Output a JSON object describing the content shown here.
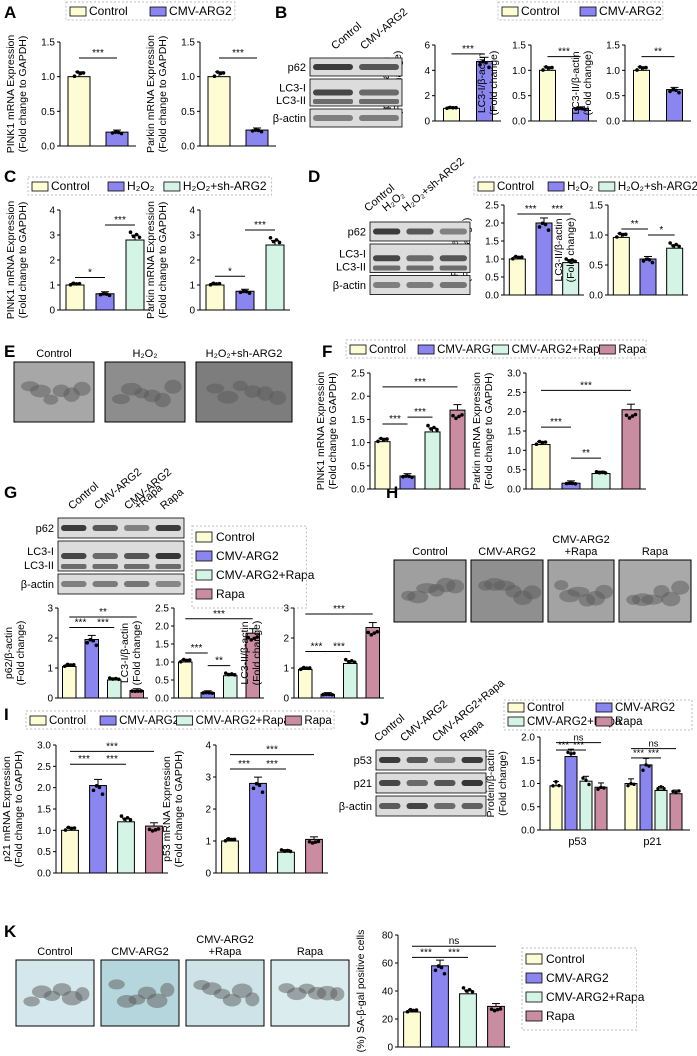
{
  "colors": {
    "control": "#fdfcd2",
    "cmv": "#8a85ef",
    "green": "#d4f4e6",
    "pink": "#c98ca0"
  },
  "panels": {
    "A": {
      "label": "A",
      "legend": [
        "Control",
        "CMV-ARG2"
      ]
    },
    "B": {
      "label": "B",
      "legend": [
        "Control",
        "CMV-ARG2"
      ],
      "lanes": [
        "Control",
        "CMV-ARG2"
      ],
      "bands": [
        "p62",
        "LC3-I",
        "LC3-II",
        "β-actin"
      ]
    },
    "C": {
      "label": "C",
      "legend": [
        "Control",
        "H₂O₂",
        "H₂O₂+sh-ARG2"
      ]
    },
    "D": {
      "label": "D",
      "legend": [
        "Control",
        "H₂O₂",
        "H₂O₂+sh-ARG2"
      ],
      "lanes": [
        "Control",
        "H₂O₂",
        "H₂O₂+sh-ARG2"
      ],
      "bands": [
        "p62",
        "LC3-I",
        "LC3-II",
        "β-actin"
      ]
    },
    "E": {
      "label": "E",
      "titles": [
        "Control",
        "H₂O₂",
        "H₂O₂+sh-ARG2"
      ]
    },
    "F": {
      "label": "F",
      "legend": [
        "Control",
        "CMV-ARG2",
        "CMV-ARG2+Rapa",
        "Rapa"
      ]
    },
    "G": {
      "label": "G",
      "legend": [
        "Control",
        "CMV-ARG2",
        "CMV-ARG2+Rapa",
        "Rapa"
      ],
      "lanes": [
        "Control",
        "CMV-ARG2",
        "CMV-ARG2",
        "+Rapa",
        "Rapa"
      ],
      "bands": [
        "p62",
        "LC3-I",
        "LC3-II",
        "β-actin"
      ]
    },
    "H": {
      "label": "H",
      "titles": [
        "Control",
        "CMV-ARG2",
        "CMV-ARG2",
        "+Rapa",
        "Rapa"
      ]
    },
    "I": {
      "label": "I",
      "legend": [
        "Control",
        "CMV-ARG2",
        "CMV-ARG2+Rapa",
        "Rapa"
      ]
    },
    "J": {
      "label": "J",
      "legend": [
        "Control",
        "CMV-ARG2",
        "CMV-ARG2+Rapa",
        "Rapa"
      ],
      "lanes": [
        "Control",
        "CMV-ARG2",
        "CMV-ARG2+Rapa",
        "Rapa"
      ],
      "bands": [
        "p53",
        "p21",
        "β-actin"
      ]
    },
    "K": {
      "label": "K",
      "titles": [
        "Control",
        "CMV-ARG2",
        "CMV-ARG2",
        "+Rapa",
        "Rapa"
      ],
      "legend": [
        "Control",
        "CMV-ARG2",
        "CMV-ARG2+Rapa",
        "Rapa"
      ]
    }
  },
  "chart_data": [
    {
      "id": "A1",
      "type": "bar",
      "categories": [
        "Control",
        "CMV-ARG2"
      ],
      "values": [
        1.0,
        0.2
      ],
      "ylim": [
        0,
        1.5
      ],
      "yticks": [
        "0.0",
        "0.5",
        "1.0",
        "1.5"
      ],
      "ylabel": [
        "PINK1 mRNA Expression",
        "(Fold change to GAPDH)"
      ],
      "sig": [
        {
          "a": 0,
          "b": 1,
          "text": "***",
          "y": 1.27
        }
      ]
    },
    {
      "id": "A2",
      "type": "bar",
      "categories": [
        "Control",
        "CMV-ARG2"
      ],
      "values": [
        1.0,
        0.23
      ],
      "ylim": [
        0,
        1.5
      ],
      "yticks": [
        "0.0",
        "0.5",
        "1.0",
        "1.5"
      ],
      "ylabel": [
        "Parkin mRNA Expression",
        "(Fold change to GAPDH)"
      ],
      "sig": [
        {
          "a": 0,
          "b": 1,
          "text": "***",
          "y": 1.27
        }
      ]
    },
    {
      "id": "B1",
      "type": "bar",
      "categories": [
        "Control",
        "CMV-ARG2"
      ],
      "values": [
        1.0,
        4.7
      ],
      "ylim": [
        0,
        6
      ],
      "yticks": [
        "0",
        "2",
        "4",
        "6"
      ],
      "ylabel": [
        "p62/β-actin",
        "(Fold change)"
      ],
      "sig": [
        {
          "a": 0,
          "b": 1,
          "text": "***",
          "y": 5.3
        }
      ]
    },
    {
      "id": "B2",
      "type": "bar",
      "categories": [
        "Control",
        "CMV-ARG2"
      ],
      "values": [
        1.0,
        0.25
      ],
      "ylim": [
        0,
        1.5
      ],
      "yticks": [
        "0.0",
        "0.5",
        "1.0",
        "1.5"
      ],
      "ylabel": [
        "LC3-I/β-actin",
        "(Fold change)"
      ],
      "sig": [
        {
          "a": 0,
          "b": 1,
          "text": "***",
          "y": 1.27
        }
      ]
    },
    {
      "id": "B3",
      "type": "bar",
      "categories": [
        "Control",
        "CMV-ARG2"
      ],
      "values": [
        1.0,
        0.62
      ],
      "ylim": [
        0,
        1.5
      ],
      "yticks": [
        "0.0",
        "0.5",
        "1.0",
        "1.5"
      ],
      "ylabel": [
        "LC3-II/β-actin",
        "(Fold change)"
      ],
      "sig": [
        {
          "a": 0,
          "b": 1,
          "text": "**",
          "y": 1.27
        }
      ]
    },
    {
      "id": "C1",
      "type": "bar",
      "categories": [
        "Control",
        "H₂O₂",
        "H₂O₂+sh-ARG2"
      ],
      "values": [
        1.0,
        0.65,
        2.8
      ],
      "ylim": [
        0,
        4
      ],
      "yticks": [
        "0",
        "1",
        "2",
        "3",
        "4"
      ],
      "ylabel": [
        "PINK1 mRNA Expression",
        "(Fold change to GAPDH)"
      ],
      "sig": [
        {
          "a": 0,
          "b": 1,
          "text": "*",
          "y": 1.3
        },
        {
          "a": 1,
          "b": 2,
          "text": "***",
          "y": 3.4
        }
      ]
    },
    {
      "id": "C2",
      "type": "bar",
      "categories": [
        "Control",
        "H₂O₂",
        "H₂O₂+sh-ARG2"
      ],
      "values": [
        1.0,
        0.75,
        2.6
      ],
      "ylim": [
        0,
        4
      ],
      "yticks": [
        "0",
        "1",
        "2",
        "3",
        "4"
      ],
      "ylabel": [
        "Parkin mRNA Expression",
        "(Fold change to GAPDH)"
      ],
      "sig": [
        {
          "a": 0,
          "b": 1,
          "text": "*",
          "y": 1.35
        },
        {
          "a": 1,
          "b": 2,
          "text": "***",
          "y": 3.2
        }
      ]
    },
    {
      "id": "D1",
      "type": "bar",
      "categories": [
        "Control",
        "H₂O₂",
        "H₂O₂+sh-ARG2"
      ],
      "values": [
        1.0,
        2.0,
        0.9
      ],
      "ylim": [
        0,
        2.5
      ],
      "yticks": [
        "0.0",
        "0.5",
        "1.0",
        "1.5",
        "2.0",
        "2.5"
      ],
      "ylabel": [
        "P62/β-actin",
        "(Fold change)"
      ],
      "sig": [
        {
          "a": 0,
          "b": 1,
          "text": "***",
          "y": 2.25
        },
        {
          "a": 1,
          "b": 2,
          "text": "***",
          "y": 2.25
        }
      ]
    },
    {
      "id": "D2",
      "type": "bar",
      "categories": [
        "Control",
        "H₂O₂",
        "H₂O₂+sh-ARG2"
      ],
      "values": [
        0.96,
        0.6,
        0.78
      ],
      "ylim": [
        0,
        1.5
      ],
      "yticks": [
        "0.0",
        "0.5",
        "1.0",
        "1.5"
      ],
      "ylabel": [
        "LC3-II/β-actin",
        "(Fold change)"
      ],
      "sig": [
        {
          "a": 0,
          "b": 1,
          "text": "**",
          "y": 1.1
        },
        {
          "a": 1,
          "b": 2,
          "text": "*",
          "y": 1.0
        }
      ]
    },
    {
      "id": "F1",
      "type": "bar",
      "categories": [
        "Control",
        "CMV-ARG2",
        "CMV-ARG2+Rapa",
        "Rapa"
      ],
      "values": [
        1.02,
        0.28,
        1.23,
        1.7
      ],
      "ylim": [
        0,
        2.5
      ],
      "yticks": [
        "0.0",
        "0.5",
        "1.0",
        "1.5",
        "2.0",
        "2.5"
      ],
      "ylabel": [
        "PINK1 mRNA Expression",
        "(Fold change to GAPDH)"
      ],
      "sig": [
        {
          "a": 0,
          "b": 1,
          "text": "***",
          "y": 1.4
        },
        {
          "a": 1,
          "b": 2,
          "text": "***",
          "y": 1.55
        },
        {
          "a": 0,
          "b": 3,
          "text": "***",
          "y": 2.2
        }
      ]
    },
    {
      "id": "F2",
      "type": "bar",
      "categories": [
        "Control",
        "CMV-ARG2",
        "CMV-ARG2+Rapa",
        "Rapa"
      ],
      "values": [
        1.15,
        0.15,
        0.4,
        2.05
      ],
      "ylim": [
        0,
        3.0
      ],
      "yticks": [
        "0.0",
        "0.5",
        "1.0",
        "1.5",
        "2.0",
        "2.5",
        "3.0"
      ],
      "ylabel": [
        "Parkin mRNA Expression",
        "(Fold change to GAPDH)"
      ],
      "sig": [
        {
          "a": 0,
          "b": 1,
          "text": "***",
          "y": 1.6
        },
        {
          "a": 1,
          "b": 2,
          "text": "**",
          "y": 0.8
        },
        {
          "a": 0,
          "b": 3,
          "text": "***",
          "y": 2.55
        }
      ]
    },
    {
      "id": "G1",
      "type": "bar",
      "categories": [
        "Control",
        "CMV-ARG2",
        "CMV-ARG2+Rapa",
        "Rapa"
      ],
      "values": [
        1.05,
        1.95,
        0.6,
        0.25
      ],
      "ylim": [
        0,
        3
      ],
      "yticks": [
        "0",
        "1",
        "2",
        "3"
      ],
      "ylabel": [
        "p62/β-actin",
        "(Fold change)"
      ],
      "sig": [
        {
          "a": 0,
          "b": 1,
          "text": "***",
          "y": 2.35
        },
        {
          "a": 1,
          "b": 2,
          "text": "***",
          "y": 2.35
        },
        {
          "a": 0,
          "b": 3,
          "text": "**",
          "y": 2.7
        }
      ]
    },
    {
      "id": "G2",
      "type": "bar",
      "categories": [
        "Control",
        "CMV-ARG2",
        "CMV-ARG2+Rapa",
        "Rapa"
      ],
      "values": [
        1.0,
        0.15,
        0.62,
        1.8
      ],
      "ylim": [
        0,
        2.5
      ],
      "yticks": [
        "0.0",
        "0.5",
        "1.0",
        "1.5",
        "2.0",
        "2.5"
      ],
      "ylabel": [
        "LC3-I/β-actin",
        "(Fold change)"
      ],
      "sig": [
        {
          "a": 0,
          "b": 1,
          "text": "***",
          "y": 1.25
        },
        {
          "a": 1,
          "b": 2,
          "text": "**",
          "y": 0.9
        },
        {
          "a": 0,
          "b": 3,
          "text": "***",
          "y": 2.2
        }
      ]
    },
    {
      "id": "G3",
      "type": "bar",
      "categories": [
        "Control",
        "CMV-ARG2",
        "CMV-ARG2+Rapa",
        "Rapa"
      ],
      "values": [
        0.95,
        0.12,
        1.15,
        2.35
      ],
      "ylim": [
        0,
        3
      ],
      "yticks": [
        "0",
        "1",
        "2",
        "3"
      ],
      "ylabel": [
        "LC3-II/β-actin",
        "(Fold change)"
      ],
      "sig": [
        {
          "a": 0,
          "b": 1,
          "text": "***",
          "y": 1.55
        },
        {
          "a": 1,
          "b": 2,
          "text": "***",
          "y": 1.55
        },
        {
          "a": 0,
          "b": 3,
          "text": "***",
          "y": 2.8
        }
      ]
    },
    {
      "id": "I1",
      "type": "bar",
      "categories": [
        "Control",
        "CMV-ARG2",
        "CMV-ARG2+Rapa",
        "Rapa"
      ],
      "values": [
        1.0,
        2.05,
        1.2,
        1.1
      ],
      "ylim": [
        0,
        3.0
      ],
      "yticks": [
        "0.0",
        "0.5",
        "1.0",
        "1.5",
        "2.0",
        "2.5",
        "3.0"
      ],
      "ylabel": [
        "p21 mRNA Expression",
        "(Fold change to GAPDH)"
      ],
      "sig": [
        {
          "a": 0,
          "b": 1,
          "text": "***",
          "y": 2.55
        },
        {
          "a": 1,
          "b": 2,
          "text": "***",
          "y": 2.55
        },
        {
          "a": 0,
          "b": 3,
          "text": "***",
          "y": 2.85
        }
      ]
    },
    {
      "id": "I2",
      "type": "bar",
      "categories": [
        "Control",
        "CMV-ARG2",
        "CMV-ARG2+Rapa",
        "Rapa"
      ],
      "values": [
        1.0,
        2.8,
        0.65,
        1.05
      ],
      "ylim": [
        0,
        4
      ],
      "yticks": [
        "0",
        "1",
        "2",
        "3",
        "4"
      ],
      "ylabel": [
        "p53 mRNA Expression",
        "(Fold change to GAPDH)"
      ],
      "sig": [
        {
          "a": 0,
          "b": 1,
          "text": "***",
          "y": 3.25
        },
        {
          "a": 1,
          "b": 2,
          "text": "***",
          "y": 3.25
        },
        {
          "a": 0,
          "b": 3,
          "text": "***",
          "y": 3.7
        }
      ]
    },
    {
      "id": "J1",
      "type": "bar",
      "categories": [
        "p53",
        "p21"
      ],
      "series": [
        {
          "values": [
            0.95,
            1.0
          ]
        },
        {
          "values": [
            1.58,
            1.4
          ]
        },
        {
          "values": [
            1.05,
            0.85
          ]
        },
        {
          "values": [
            0.92,
            0.78
          ]
        }
      ],
      "ylim": [
        0,
        2.0
      ],
      "yticks": [
        "0.0",
        "0.5",
        "1.0",
        "1.5",
        "2.0"
      ],
      "ylabel": [
        "Protein/β-actin",
        "(Fold change)"
      ],
      "sig": [
        {
          "g": 0,
          "a": 0,
          "b": 1,
          "text": "***",
          "y": 1.72
        },
        {
          "g": 0,
          "a": 1,
          "b": 2,
          "text": "***",
          "y": 1.72
        },
        {
          "g": 0,
          "a": 0,
          "b": 3,
          "text": "ns",
          "y": 1.88
        },
        {
          "g": 1,
          "a": 0,
          "b": 1,
          "text": "***",
          "y": 1.55
        },
        {
          "g": 1,
          "a": 1,
          "b": 2,
          "text": "***",
          "y": 1.55
        },
        {
          "g": 1,
          "a": 0,
          "b": 3,
          "text": "ns",
          "y": 1.75
        }
      ]
    },
    {
      "id": "K1",
      "type": "bar",
      "categories": [
        "Control",
        "CMV-ARG2",
        "CMV-ARG2+Rapa",
        "Rapa"
      ],
      "values": [
        25,
        58,
        38,
        29
      ],
      "ylim": [
        0,
        80
      ],
      "yticks": [
        "0",
        "20",
        "40",
        "60",
        "80"
      ],
      "ylabel": [
        "(%) SA-β-gal positive cells"
      ],
      "sig": [
        {
          "a": 0,
          "b": 1,
          "text": "***",
          "y": 64
        },
        {
          "a": 1,
          "b": 2,
          "text": "***",
          "y": 64
        },
        {
          "a": 0,
          "b": 3,
          "text": "ns",
          "y": 72
        }
      ]
    }
  ]
}
